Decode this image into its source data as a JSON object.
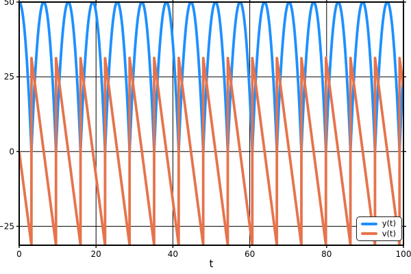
{
  "chart_data": {
    "type": "line",
    "title": "",
    "xlabel": "t",
    "ylabel": "",
    "xlim": [
      0,
      100
    ],
    "ylim": [
      -31.32,
      50
    ],
    "xticks": [
      0,
      20,
      40,
      60,
      80,
      100
    ],
    "yticks": [
      -25,
      0,
      25,
      50
    ],
    "grid": true,
    "colors": {
      "grid": "#000000",
      "spine": "#000000",
      "background": "#ffffff",
      "text": "#000000"
    },
    "legend": {
      "position": "lower right",
      "entries": [
        {
          "label": "y(t)",
          "color": "#1e90ff"
        },
        {
          "label": "v(t)",
          "color": "#e6734c"
        }
      ]
    },
    "series": [
      {
        "name": "y(t)",
        "color": "#1e90ff",
        "role": "height",
        "min": 0,
        "max": 50
      },
      {
        "name": "v(t)",
        "color": "#e6734c",
        "role": "velocity",
        "min": -31.32,
        "max": 31.32
      }
    ],
    "model": {
      "system": "bouncing-ball-elastic",
      "initial_height": 50,
      "initial_velocity": 0,
      "gravity": 9.81,
      "impact_speed": 31.32,
      "first_bounce_t": 3.193,
      "bounce_period": 6.386,
      "peak_height": 50,
      "bounce_times": [
        3.19,
        9.58,
        15.97,
        22.35,
        28.74,
        35.12,
        41.51,
        47.9,
        54.28,
        60.67,
        67.05,
        73.44,
        79.83,
        86.21,
        92.6,
        98.98
      ],
      "peak_times": [
        0,
        6.39,
        12.77,
        19.16,
        25.54,
        31.93,
        38.32,
        44.7,
        51.09,
        57.47,
        63.86,
        70.25,
        76.63,
        83.02,
        89.4,
        95.79
      ]
    },
    "style": {
      "line_width": 3.8,
      "grid_width": 1,
      "spine_width": 2,
      "tick_length": 4,
      "tick_font_size": 12
    }
  }
}
